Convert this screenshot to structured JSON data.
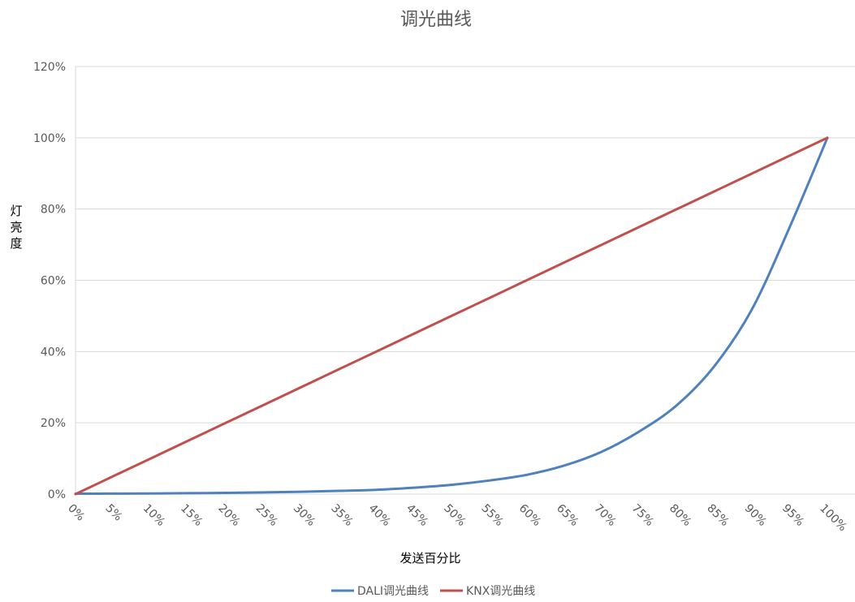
{
  "chart_data": {
    "type": "line",
    "title": "调光曲线",
    "xlabel": "发送百分比",
    "ylabel": "灯亮度",
    "x_categories": [
      "0%",
      "5%",
      "10%",
      "15%",
      "20%",
      "25%",
      "30%",
      "35%",
      "40%",
      "45%",
      "50%",
      "55%",
      "60%",
      "65%",
      "70%",
      "75%",
      "80%",
      "85%",
      "90%",
      "95%",
      "100%"
    ],
    "x": [
      0,
      5,
      10,
      15,
      20,
      25,
      30,
      35,
      40,
      45,
      50,
      55,
      60,
      65,
      70,
      75,
      80,
      85,
      90,
      95,
      100
    ],
    "ylim": [
      0,
      120
    ],
    "y_ticks": [
      "0%",
      "20%",
      "40%",
      "60%",
      "80%",
      "100%",
      "120%"
    ],
    "y_tick_values": [
      0,
      20,
      40,
      60,
      80,
      100,
      120
    ],
    "grid": true,
    "legend_position": "bottom",
    "series": [
      {
        "name": "DALI调光曲线",
        "color": "#4F81BD",
        "values": [
          0.1,
          0.14,
          0.18,
          0.25,
          0.34,
          0.47,
          0.65,
          0.9,
          1.2,
          1.8,
          2.6,
          3.8,
          5.4,
          8,
          11.9,
          17.6,
          25,
          36,
          52,
          75,
          100
        ]
      },
      {
        "name": "KNX调光曲线",
        "color": "#C0504D",
        "values": [
          0,
          5,
          10,
          15,
          20,
          25,
          30,
          35,
          40,
          45,
          50,
          55,
          60,
          65,
          70,
          75,
          80,
          85,
          90,
          95,
          100
        ]
      }
    ]
  }
}
